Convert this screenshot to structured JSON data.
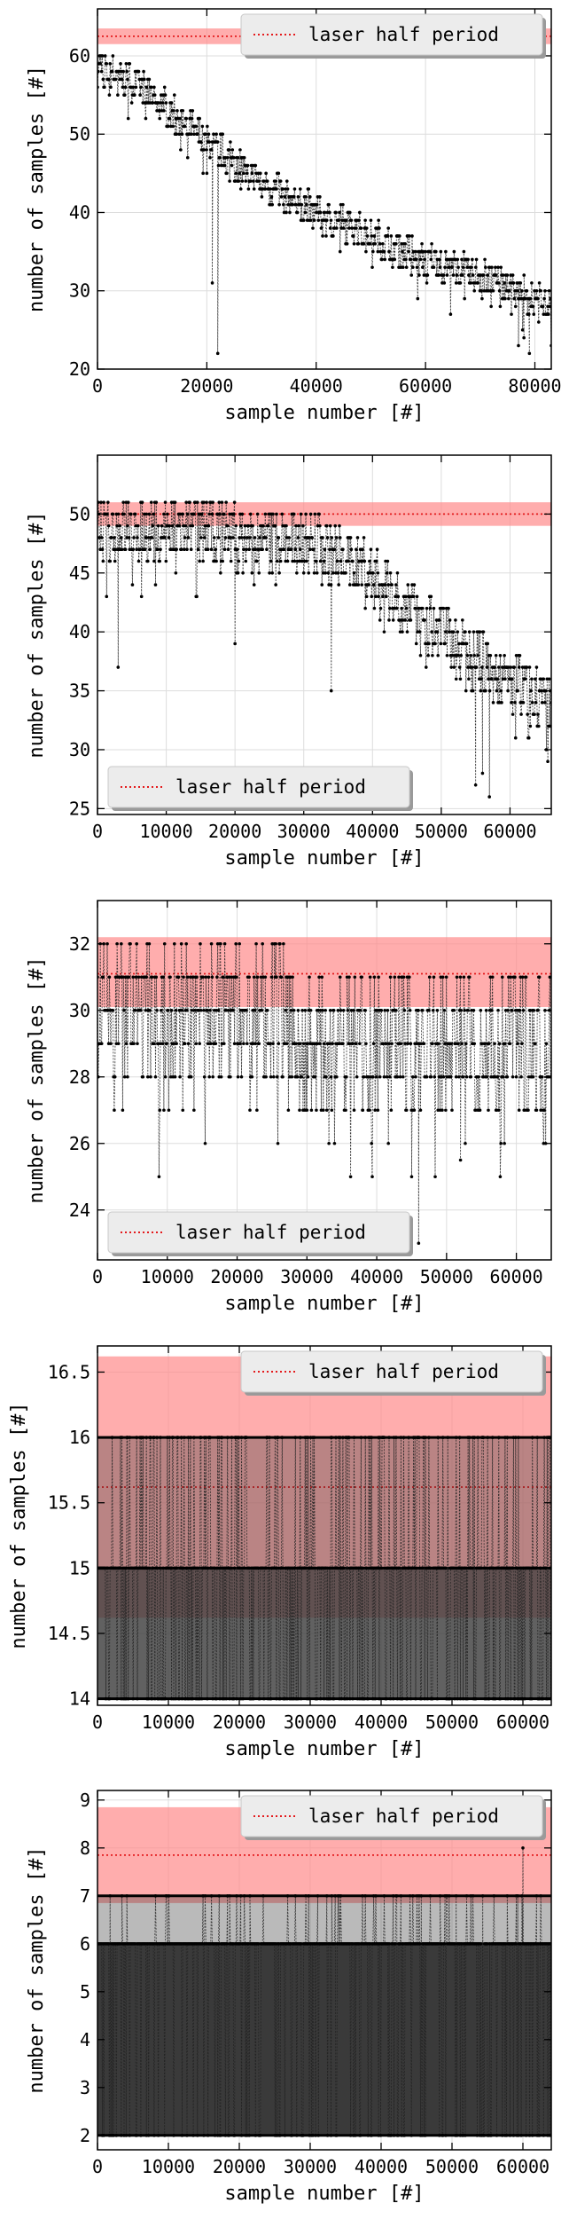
{
  "colors": {
    "band_fill": "#ff8a8a",
    "band_line": "#e41a1c",
    "data_line": "#222222",
    "grid": "#dddddd",
    "legend_bg": "#ececec"
  },
  "chart_data": [
    {
      "type": "scatter",
      "xlabel": "sample number [#]",
      "ylabel": "number of samples [#]",
      "xlim": [
        0,
        83000
      ],
      "ylim": [
        20,
        66
      ],
      "xticks": [
        0,
        20000,
        40000,
        60000,
        80000
      ],
      "yticks": [
        20,
        30,
        40,
        50,
        60
      ],
      "grid": true,
      "legend": {
        "label": "laser half period",
        "placement": "top-right"
      },
      "band": {
        "center": 62.5,
        "low": 61.5,
        "high": 63.5
      },
      "trend": {
        "x": [
          0,
          10000,
          20000,
          30000,
          40000,
          50000,
          60000,
          70000,
          80000,
          83000
        ],
        "y": [
          60,
          56,
          50,
          45,
          41,
          38,
          35,
          33,
          30,
          29
        ]
      },
      "dips": [
        [
          20000,
          45
        ],
        [
          21000,
          31
        ],
        [
          22000,
          22
        ],
        [
          77000,
          23
        ],
        [
          79000,
          22
        ],
        [
          78000,
          24
        ]
      ],
      "spread": [
        -3,
        1
      ]
    },
    {
      "type": "scatter",
      "xlabel": "sample number [#]",
      "ylabel": "number of samples [#]",
      "xlim": [
        0,
        66000
      ],
      "ylim": [
        24.5,
        55
      ],
      "xticks": [
        0,
        10000,
        20000,
        30000,
        40000,
        50000,
        60000
      ],
      "yticks": [
        25,
        30,
        35,
        40,
        45,
        50
      ],
      "grid": true,
      "legend": {
        "label": "laser half period",
        "placement": "bottom-left"
      },
      "band": {
        "center": 50,
        "low": 49,
        "high": 51
      },
      "trend": {
        "x": [
          0,
          10000,
          20000,
          30000,
          35000,
          40000,
          50000,
          60000,
          66000
        ],
        "y": [
          50,
          50,
          49.5,
          49,
          48,
          46,
          41,
          37,
          35
        ]
      },
      "dips": [
        [
          3000,
          37
        ],
        [
          20000,
          39
        ],
        [
          34000,
          35
        ],
        [
          55000,
          27
        ],
        [
          57000,
          26
        ],
        [
          56000,
          28
        ]
      ],
      "spread": [
        -4,
        1.5
      ]
    },
    {
      "type": "scatter",
      "xlabel": "sample number [#]",
      "ylabel": "number of samples [#]",
      "xlim": [
        0,
        65000
      ],
      "ylim": [
        22.5,
        33.3
      ],
      "xticks": [
        0,
        10000,
        20000,
        30000,
        40000,
        50000,
        60000
      ],
      "yticks": [
        24,
        26,
        28,
        30,
        32
      ],
      "grid": true,
      "legend": {
        "label": "laser half period",
        "placement": "bottom-left"
      },
      "band": {
        "center": 31.1,
        "low": 30.1,
        "high": 32.2
      },
      "trend": {
        "x": [
          0,
          27000,
          40000,
          65000
        ],
        "y": [
          30.5,
          30.5,
          30.2,
          29.8
        ]
      },
      "dips": [
        [
          46000,
          23
        ],
        [
          45000,
          25
        ],
        [
          52000,
          25.5
        ],
        [
          30000,
          27
        ],
        [
          38000,
          27
        ]
      ],
      "spread": [
        -3,
        1
      ]
    },
    {
      "type": "scatter",
      "xlabel": "sample number [#]",
      "ylabel": "number of samples [#]",
      "xlim": [
        0,
        64000
      ],
      "ylim": [
        13.95,
        16.7
      ],
      "xticks": [
        0,
        10000,
        20000,
        30000,
        40000,
        50000,
        60000
      ],
      "yticks": [
        14.0,
        14.5,
        15.0,
        15.5,
        16.0,
        16.5
      ],
      "grid": true,
      "legend": {
        "label": "laser half period",
        "placement": "top-right"
      },
      "band": {
        "center": 15.62,
        "low": 14.62,
        "high": 16.62
      },
      "levels": [
        14,
        15,
        16
      ],
      "trend": {
        "x": [
          0,
          64000
        ],
        "y": [
          15,
          15
        ]
      },
      "dips": [],
      "spread": [
        -1,
        1
      ]
    },
    {
      "type": "scatter",
      "xlabel": "sample number [#]",
      "ylabel": "number of samples [#]",
      "xlim": [
        0,
        64000
      ],
      "ylim": [
        1.7,
        9.2
      ],
      "xticks": [
        0,
        10000,
        20000,
        30000,
        40000,
        50000,
        60000
      ],
      "yticks": [
        2,
        3,
        4,
        5,
        6,
        7,
        8,
        9
      ],
      "grid": true,
      "legend": {
        "label": "laser half period",
        "placement": "top-right"
      },
      "band": {
        "center": 7.85,
        "low": 6.85,
        "high": 8.85
      },
      "levels": [
        2,
        6,
        7
      ],
      "trend": {
        "x": [
          0,
          64000
        ],
        "y": [
          6,
          6
        ]
      },
      "dips": [
        [
          60000,
          8
        ]
      ],
      "spread": [
        0,
        1
      ]
    }
  ]
}
